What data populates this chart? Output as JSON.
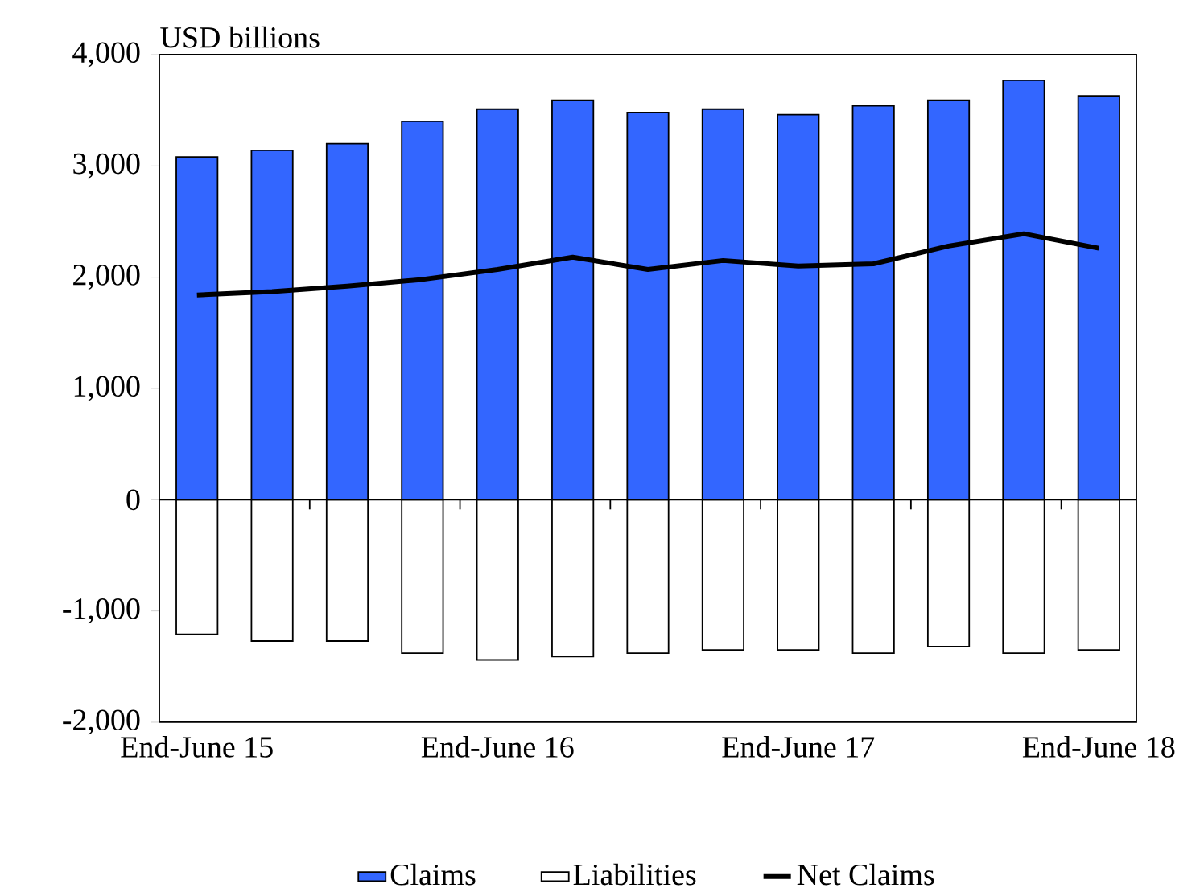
{
  "chart_data": {
    "type": "bar",
    "ylabel": "USD billions",
    "categories": [
      "End-June 15",
      null,
      null,
      null,
      "End-June 16",
      null,
      null,
      null,
      "End-June 17",
      null,
      null,
      null,
      "End-June 18"
    ],
    "series": [
      {
        "name": "Claims",
        "color": "#3366ff",
        "values": [
          3080,
          3140,
          3200,
          3400,
          3510,
          3590,
          3480,
          3510,
          3460,
          3540,
          3590,
          3770,
          3630
        ]
      },
      {
        "name": "Liabilities",
        "color": "#ffffff",
        "values": [
          -1210,
          -1270,
          -1270,
          -1380,
          -1440,
          -1410,
          -1380,
          -1350,
          -1350,
          -1380,
          -1320,
          -1380,
          -1350
        ]
      },
      {
        "name": "Net Claims",
        "type": "line",
        "color": "#000000",
        "values": [
          1840,
          1870,
          1920,
          1980,
          2070,
          2180,
          2070,
          2150,
          2100,
          2120,
          2280,
          2390,
          2260
        ]
      }
    ],
    "ylim": [
      -2000,
      4000
    ],
    "yticks": [
      {
        "value": -2000,
        "label": "-2,000"
      },
      {
        "value": -1000,
        "label": "-1,000"
      },
      {
        "value": 0,
        "label": "0"
      },
      {
        "value": 1000,
        "label": "1,000"
      },
      {
        "value": 2000,
        "label": "2,000"
      },
      {
        "value": 3000,
        "label": "3,000"
      },
      {
        "value": 4000,
        "label": "4,000"
      }
    ],
    "ref_lines": [
      {
        "axis": "y",
        "value": 0,
        "color": "#000000"
      }
    ],
    "stacked": true,
    "grid": false,
    "legend": "bottom",
    "marker": "none",
    "line_style": "solid"
  }
}
